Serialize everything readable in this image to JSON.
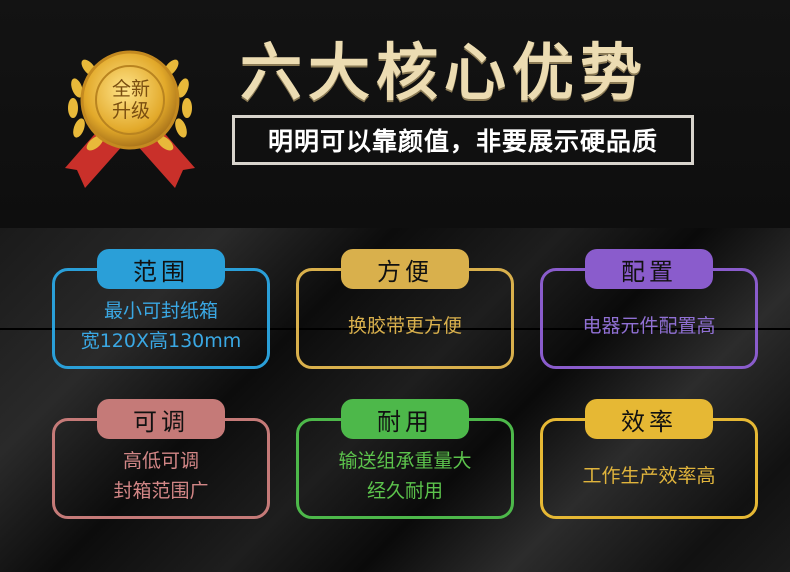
{
  "header": {
    "badge_text": "全新升级",
    "title": "六大核心优势",
    "subtitle": "明明可以靠颜值，非要展示硬品质"
  },
  "features": [
    {
      "tab": "范围",
      "lines": [
        "最小可封纸箱",
        "宽120X高130mm"
      ],
      "color": "#2a9fd8",
      "text_color": "#3aa8e4"
    },
    {
      "tab": "方便",
      "lines": [
        "换胶带更方便"
      ],
      "color": "#d9b04c",
      "text_color": "#d9b04c"
    },
    {
      "tab": "配置",
      "lines": [
        "电器元件配置高"
      ],
      "color": "#8a5ccc",
      "text_color": "#9070d4"
    },
    {
      "tab": "可调",
      "lines": [
        "高低可调",
        "封箱范围广"
      ],
      "color": "#c57a78",
      "text_color": "#d28686"
    },
    {
      "tab": "耐用",
      "lines": [
        "输送组承重量大",
        "经久耐用"
      ],
      "color": "#4db84a",
      "text_color": "#5cc34c"
    },
    {
      "tab": "效率",
      "lines": [
        "工作生产效率高"
      ],
      "color": "#e6b834",
      "text_color": "#e0b43c"
    }
  ]
}
